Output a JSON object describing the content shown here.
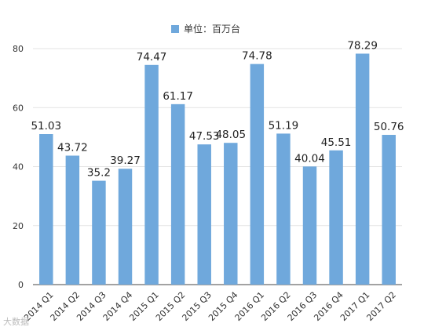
{
  "chart_data": {
    "type": "bar",
    "categories": [
      "2014 Q1",
      "2014 Q2",
      "2014 Q3",
      "2014 Q4",
      "2015 Q1",
      "2015 Q2",
      "2015 Q3",
      "2015 Q4",
      "2016 Q1",
      "2016 Q2",
      "2016 Q3",
      "2016 Q4",
      "2017 Q1",
      "2017 Q2"
    ],
    "series": [
      {
        "name": "单位：百万台",
        "values": [
          51.03,
          43.72,
          35.2,
          39.27,
          74.47,
          61.17,
          47.53,
          48.05,
          74.78,
          51.19,
          40.04,
          45.51,
          78.29,
          50.76
        ]
      }
    ],
    "data_labels": [
      "51.03",
      "43.72",
      "35.2",
      "39.27",
      "74.47",
      "61.17",
      "47.53",
      "48.05",
      "74.78",
      "51.19",
      "40.04",
      "45.51",
      "78.29",
      "50.76"
    ],
    "title": "",
    "xlabel": "",
    "ylabel": "",
    "ylim": [
      0,
      80
    ],
    "yticks": [
      "0",
      "20",
      "40",
      "60",
      "80"
    ],
    "grid": true,
    "legend_position": "top-center",
    "bar_color": "#6fa8dc"
  },
  "watermark": "大数据"
}
